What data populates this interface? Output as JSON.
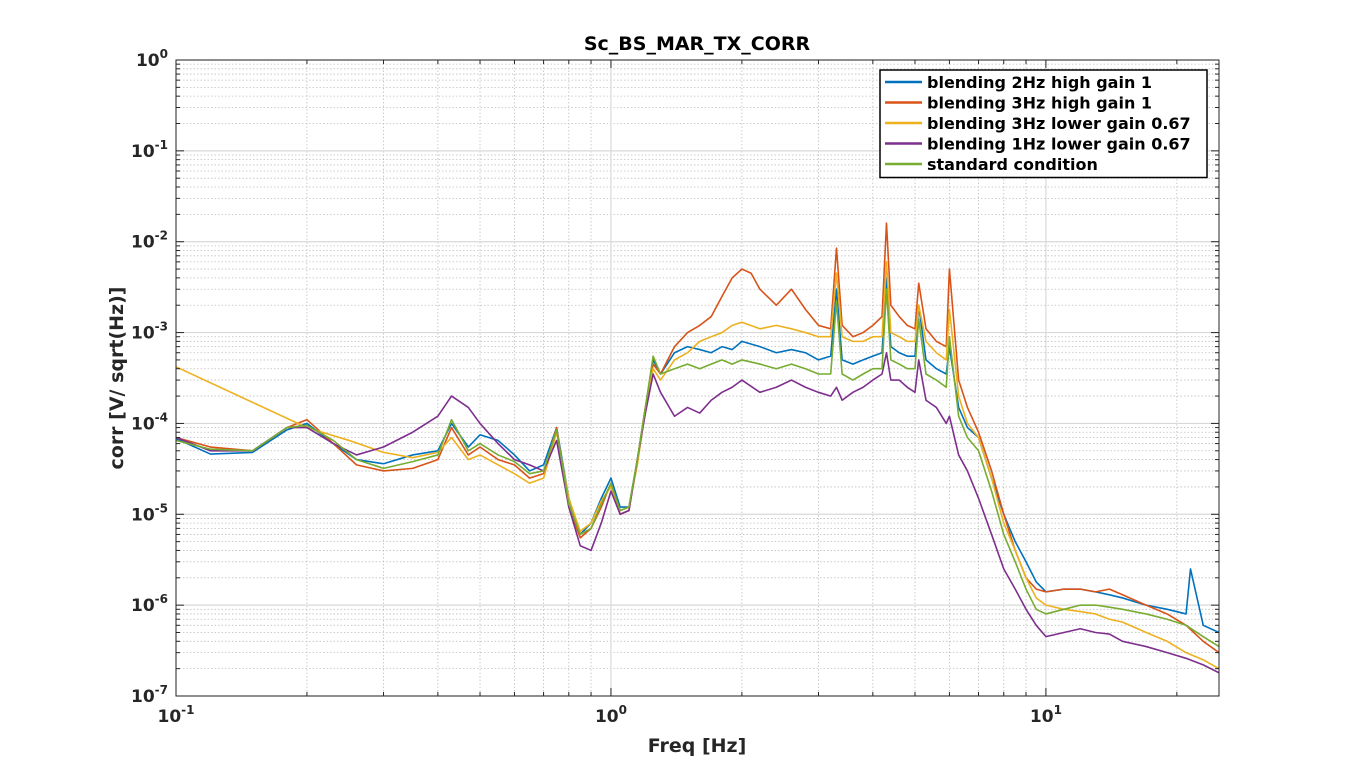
{
  "chart_data": {
    "type": "line",
    "title": "Sc_BS_MAR_TX_CORR",
    "xlabel": "Freq [Hz]",
    "ylabel": "corr [V/ sqrt(Hz)]",
    "xscale": "log",
    "yscale": "log",
    "xlim": [
      0.1,
      25
    ],
    "ylim": [
      1e-07,
      1
    ],
    "grid": true,
    "minor_grid": true,
    "legend_position": "top-right",
    "x_ticks": [
      {
        "base": "10",
        "exp": "-1",
        "value": 0.1
      },
      {
        "base": "10",
        "exp": "0",
        "value": 1
      },
      {
        "base": "10",
        "exp": "1",
        "value": 10
      }
    ],
    "y_ticks": [
      {
        "base": "10",
        "exp": "0",
        "value": 1
      },
      {
        "base": "10",
        "exp": "-1",
        "value": 0.1
      },
      {
        "base": "10",
        "exp": "-2",
        "value": 0.01
      },
      {
        "base": "10",
        "exp": "-3",
        "value": 0.001
      },
      {
        "base": "10",
        "exp": "-4",
        "value": 0.0001
      },
      {
        "base": "10",
        "exp": "-5",
        "value": 1e-05
      },
      {
        "base": "10",
        "exp": "-6",
        "value": 1e-06
      },
      {
        "base": "10",
        "exp": "-7",
        "value": 1e-07
      }
    ],
    "series": [
      {
        "name": "blending 2Hz high gain 1",
        "color": "#0072BD",
        "x": [
          0.1,
          0.12,
          0.15,
          0.18,
          0.2,
          0.23,
          0.26,
          0.3,
          0.35,
          0.4,
          0.43,
          0.47,
          0.5,
          0.55,
          0.6,
          0.65,
          0.7,
          0.75,
          0.8,
          0.85,
          0.9,
          0.95,
          1.0,
          1.05,
          1.1,
          1.15,
          1.2,
          1.25,
          1.3,
          1.4,
          1.5,
          1.6,
          1.7,
          1.8,
          1.9,
          2.0,
          2.2,
          2.4,
          2.6,
          2.8,
          3.0,
          3.2,
          3.3,
          3.4,
          3.6,
          3.8,
          4.0,
          4.2,
          4.3,
          4.4,
          4.6,
          4.8,
          5.0,
          5.1,
          5.3,
          5.6,
          5.9,
          6.0,
          6.3,
          6.6,
          7.0,
          7.5,
          8.0,
          8.5,
          9.0,
          9.5,
          10.0,
          11.0,
          12.0,
          13.0,
          14.0,
          15.0,
          17.0,
          19.0,
          21.0,
          21.5,
          23.0,
          25.0
        ],
        "y": [
          6.8e-05,
          4.6e-05,
          4.8e-05,
          8.5e-05,
          0.0001,
          6e-05,
          4e-05,
          3.6e-05,
          4.5e-05,
          5e-05,
          0.0001,
          5.5e-05,
          7.5e-05,
          6.5e-05,
          4.5e-05,
          3e-05,
          3.5e-05,
          9e-05,
          1.5e-05,
          6e-06,
          8e-06,
          1.5e-05,
          2.5e-05,
          1.2e-05,
          1.2e-05,
          4e-05,
          0.00015,
          0.0005,
          0.00035,
          0.0006,
          0.0007,
          0.00065,
          0.0006,
          0.0007,
          0.00065,
          0.0008,
          0.0007,
          0.0006,
          0.00065,
          0.0006,
          0.0005,
          0.00055,
          0.003,
          0.0005,
          0.00045,
          0.0005,
          0.00055,
          0.0006,
          0.004,
          0.0007,
          0.0006,
          0.00055,
          0.00055,
          0.002,
          0.0005,
          0.0004,
          0.00035,
          0.0007,
          0.00015,
          9e-05,
          7e-05,
          2.5e-05,
          1e-05,
          5e-06,
          3e-06,
          1.8e-06,
          1.4e-06,
          1.5e-06,
          1.5e-06,
          1.4e-06,
          1.3e-06,
          1.2e-06,
          1e-06,
          9e-07,
          8e-07,
          2.5e-06,
          6e-07,
          5e-07
        ]
      },
      {
        "name": "blending 3Hz high gain 1",
        "color": "#D95319",
        "x": [
          0.1,
          0.12,
          0.15,
          0.18,
          0.2,
          0.23,
          0.26,
          0.3,
          0.35,
          0.4,
          0.43,
          0.47,
          0.5,
          0.55,
          0.6,
          0.65,
          0.7,
          0.75,
          0.8,
          0.85,
          0.9,
          0.95,
          1.0,
          1.05,
          1.1,
          1.15,
          1.2,
          1.25,
          1.3,
          1.4,
          1.5,
          1.6,
          1.7,
          1.8,
          1.9,
          2.0,
          2.1,
          2.2,
          2.4,
          2.6,
          2.8,
          3.0,
          3.2,
          3.3,
          3.4,
          3.6,
          3.8,
          4.0,
          4.2,
          4.3,
          4.4,
          4.6,
          4.8,
          5.0,
          5.1,
          5.3,
          5.6,
          5.9,
          6.0,
          6.3,
          6.6,
          7.0,
          7.5,
          8.0,
          8.5,
          9.0,
          9.5,
          10.0,
          11.0,
          12.0,
          13.0,
          14.0,
          15.0,
          17.0,
          19.0,
          21.0,
          23.0,
          25.0
        ],
        "y": [
          7e-05,
          5.5e-05,
          5e-05,
          9e-05,
          0.00011,
          6e-05,
          3.5e-05,
          3e-05,
          3.2e-05,
          4e-05,
          9e-05,
          4.5e-05,
          5.5e-05,
          4e-05,
          3.5e-05,
          2.5e-05,
          2.8e-05,
          9e-05,
          1.2e-05,
          5.5e-06,
          7e-06,
          1.2e-05,
          2.2e-05,
          1e-05,
          1.1e-05,
          4e-05,
          0.00015,
          0.00045,
          0.00035,
          0.0007,
          0.001,
          0.0012,
          0.0015,
          0.0025,
          0.004,
          0.005,
          0.0045,
          0.003,
          0.002,
          0.003,
          0.0018,
          0.0012,
          0.0011,
          0.0085,
          0.0012,
          0.0009,
          0.001,
          0.0012,
          0.0015,
          0.016,
          0.002,
          0.0015,
          0.0012,
          0.0011,
          0.0035,
          0.0011,
          0.0008,
          0.0007,
          0.005,
          0.0003,
          0.00015,
          8e-05,
          3e-05,
          1e-05,
          4e-06,
          2e-06,
          1.5e-06,
          1.4e-06,
          1.5e-06,
          1.5e-06,
          1.4e-06,
          1.5e-06,
          1.3e-06,
          1e-06,
          8e-07,
          6e-07,
          4e-07,
          3e-07
        ]
      },
      {
        "name": "blending 3Hz lower gain 0.67",
        "color": "#EDB120",
        "x": [
          0.1,
          0.2,
          0.25,
          0.3,
          0.35,
          0.4,
          0.43,
          0.47,
          0.5,
          0.55,
          0.6,
          0.65,
          0.7,
          0.75,
          0.8,
          0.85,
          0.9,
          0.95,
          1.0,
          1.05,
          1.1,
          1.15,
          1.2,
          1.25,
          1.3,
          1.4,
          1.5,
          1.6,
          1.7,
          1.8,
          1.9,
          2.0,
          2.2,
          2.4,
          2.6,
          2.8,
          3.0,
          3.2,
          3.3,
          3.4,
          3.6,
          3.8,
          4.0,
          4.2,
          4.3,
          4.4,
          4.6,
          4.8,
          5.0,
          5.1,
          5.3,
          5.6,
          5.9,
          6.0,
          6.3,
          6.6,
          7.0,
          7.5,
          8.0,
          8.5,
          9.0,
          9.5,
          10.0,
          11.0,
          12.0,
          13.0,
          14.0,
          15.0,
          17.0,
          19.0,
          21.0,
          23.0,
          25.0
        ],
        "y": [
          0.00042,
          9e-05,
          6.5e-05,
          4.8e-05,
          4.2e-05,
          4.8e-05,
          7e-05,
          4e-05,
          4.5e-05,
          3.5e-05,
          2.8e-05,
          2.2e-05,
          2.5e-05,
          8e-05,
          1.5e-05,
          6.5e-06,
          8e-06,
          1.4e-05,
          2e-05,
          1.1e-05,
          1.2e-05,
          3.5e-05,
          0.00014,
          0.0004,
          0.0003,
          0.0005,
          0.0006,
          0.0008,
          0.0009,
          0.001,
          0.0012,
          0.0013,
          0.0011,
          0.0012,
          0.0011,
          0.001,
          0.0009,
          0.0009,
          0.0045,
          0.0009,
          0.0008,
          0.0008,
          0.0009,
          0.0009,
          0.006,
          0.001,
          0.0009,
          0.0008,
          0.0008,
          0.002,
          0.0008,
          0.0006,
          0.0005,
          0.0018,
          0.0002,
          0.0001,
          7e-05,
          2.5e-05,
          8e-06,
          4e-06,
          2e-06,
          1.2e-06,
          1e-06,
          9e-07,
          8.5e-07,
          8e-07,
          7e-07,
          6.5e-07,
          5e-07,
          4e-07,
          3e-07,
          2.5e-07,
          2e-07
        ]
      },
      {
        "name": "blending 1Hz lower gain 0.67",
        "color": "#7E2F8E",
        "x": [
          0.1,
          0.12,
          0.15,
          0.18,
          0.2,
          0.23,
          0.26,
          0.3,
          0.35,
          0.4,
          0.43,
          0.47,
          0.5,
          0.55,
          0.6,
          0.65,
          0.7,
          0.75,
          0.8,
          0.85,
          0.9,
          0.95,
          1.0,
          1.05,
          1.1,
          1.15,
          1.2,
          1.25,
          1.3,
          1.4,
          1.5,
          1.6,
          1.7,
          1.8,
          1.9,
          2.0,
          2.2,
          2.4,
          2.6,
          2.8,
          3.0,
          3.2,
          3.3,
          3.4,
          3.6,
          3.8,
          4.0,
          4.2,
          4.3,
          4.4,
          4.6,
          4.8,
          5.0,
          5.1,
          5.3,
          5.6,
          5.9,
          6.0,
          6.3,
          6.6,
          7.0,
          7.5,
          8.0,
          8.5,
          9.0,
          9.5,
          10.0,
          11.0,
          12.0,
          13.0,
          14.0,
          15.0,
          17.0,
          19.0,
          21.0,
          23.0,
          25.0
        ],
        "y": [
          7e-05,
          5e-05,
          5e-05,
          9e-05,
          9e-05,
          6e-05,
          4.5e-05,
          5.5e-05,
          8e-05,
          0.00012,
          0.0002,
          0.00015,
          0.0001,
          6e-05,
          4e-05,
          3.5e-05,
          3e-05,
          6.5e-05,
          1.2e-05,
          4.5e-06,
          4e-06,
          8e-06,
          1.8e-05,
          1e-05,
          1.1e-05,
          4e-05,
          0.00013,
          0.00035,
          0.00022,
          0.00012,
          0.00015,
          0.00013,
          0.00018,
          0.00022,
          0.00025,
          0.0003,
          0.00022,
          0.00025,
          0.0003,
          0.00025,
          0.00022,
          0.0002,
          0.00025,
          0.00018,
          0.00022,
          0.00025,
          0.0003,
          0.00035,
          0.0006,
          0.0003,
          0.0003,
          0.00025,
          0.00022,
          0.0005,
          0.00018,
          0.00015,
          0.0001,
          0.00012,
          4.5e-05,
          3e-05,
          1.5e-05,
          6e-06,
          2.5e-06,
          1.5e-06,
          9e-07,
          6e-07,
          4.5e-07,
          5e-07,
          5.5e-07,
          5e-07,
          4.8e-07,
          4e-07,
          3.5e-07,
          3e-07,
          2.6e-07,
          2.2e-07,
          1.8e-07
        ]
      },
      {
        "name": "standard condition",
        "color": "#77AC30",
        "x": [
          0.1,
          0.12,
          0.15,
          0.18,
          0.2,
          0.23,
          0.26,
          0.3,
          0.35,
          0.4,
          0.43,
          0.47,
          0.5,
          0.55,
          0.6,
          0.65,
          0.7,
          0.75,
          0.8,
          0.85,
          0.9,
          0.95,
          1.0,
          1.05,
          1.1,
          1.15,
          1.2,
          1.25,
          1.3,
          1.4,
          1.5,
          1.6,
          1.7,
          1.8,
          1.9,
          2.0,
          2.2,
          2.4,
          2.6,
          2.8,
          3.0,
          3.2,
          3.3,
          3.4,
          3.6,
          3.8,
          4.0,
          4.2,
          4.3,
          4.4,
          4.6,
          4.8,
          5.0,
          5.1,
          5.3,
          5.6,
          5.9,
          6.0,
          6.3,
          6.6,
          7.0,
          7.5,
          8.0,
          8.5,
          9.0,
          9.5,
          10.0,
          11.0,
          12.0,
          13.0,
          14.0,
          15.0,
          17.0,
          19.0,
          21.0,
          23.0,
          25.0
        ],
        "y": [
          6.5e-05,
          5.2e-05,
          5e-05,
          9e-05,
          9.5e-05,
          6.5e-05,
          4e-05,
          3.2e-05,
          3.8e-05,
          4.5e-05,
          0.00011,
          5e-05,
          6e-05,
          4.5e-05,
          3.8e-05,
          2.8e-05,
          3e-05,
          8.5e-05,
          1.3e-05,
          6e-06,
          7e-06,
          1.3e-05,
          2.2e-05,
          1.1e-05,
          1.2e-05,
          4e-05,
          0.00015,
          0.00055,
          0.00035,
          0.0004,
          0.00045,
          0.0004,
          0.00045,
          0.0005,
          0.00045,
          0.0005,
          0.00045,
          0.0004,
          0.00045,
          0.0004,
          0.00035,
          0.00035,
          0.0022,
          0.00035,
          0.0003,
          0.00035,
          0.0004,
          0.0004,
          0.003,
          0.0005,
          0.00045,
          0.0004,
          0.0004,
          0.0014,
          0.00035,
          0.0003,
          0.00025,
          0.0009,
          0.00012,
          7e-05,
          5e-05,
          1.8e-05,
          6e-06,
          3e-06,
          1.5e-06,
          9e-07,
          8e-07,
          9e-07,
          1e-06,
          1e-06,
          9.5e-07,
          9e-07,
          8e-07,
          7e-07,
          6e-07,
          4.5e-07,
          3.5e-07
        ]
      }
    ]
  }
}
